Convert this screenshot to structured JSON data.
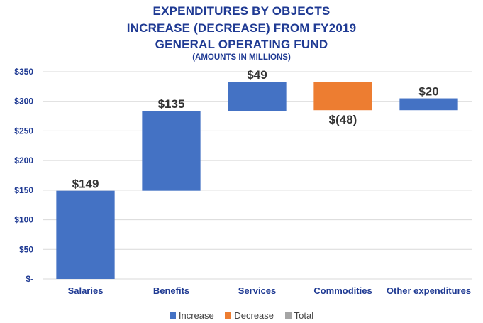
{
  "title_lines": [
    "EXPENDITURES BY OBJECTS",
    "INCREASE (DECREASE) FROM FY2019",
    "GENERAL OPERATING FUND",
    "(AMOUNTS IN MILLIONS)"
  ],
  "colors": {
    "increase": "#4472C4",
    "decrease": "#ED7D31",
    "total": "#A5A5A5",
    "title": "#1F3A93",
    "gridline": "#D9D9D9"
  },
  "legend": [
    {
      "label": "Increase",
      "color": "#4472C4"
    },
    {
      "label": "Decrease",
      "color": "#ED7D31"
    },
    {
      "label": "Total",
      "color": "#A5A5A5"
    }
  ],
  "chart_data": {
    "type": "bar",
    "subtype": "waterfall",
    "categories": [
      "Salaries",
      "Benefits",
      "Services",
      "Commodities",
      "Other expenditures"
    ],
    "values": [
      149,
      135,
      49,
      -48,
      20
    ],
    "data_labels": [
      "$149",
      "$135",
      "$49",
      "$(48)",
      "$20"
    ],
    "ylim": [
      0,
      350
    ],
    "yticks": [
      {
        "value": 0,
        "label": "$-"
      },
      {
        "value": 50,
        "label": "$50"
      },
      {
        "value": 100,
        "label": "$100"
      },
      {
        "value": 150,
        "label": "$150"
      },
      {
        "value": 200,
        "label": "$200"
      },
      {
        "value": 250,
        "label": "$250"
      },
      {
        "value": 300,
        "label": "$300"
      },
      {
        "value": 350,
        "label": "$350"
      }
    ],
    "grid": true,
    "legend_position": "bottom"
  }
}
